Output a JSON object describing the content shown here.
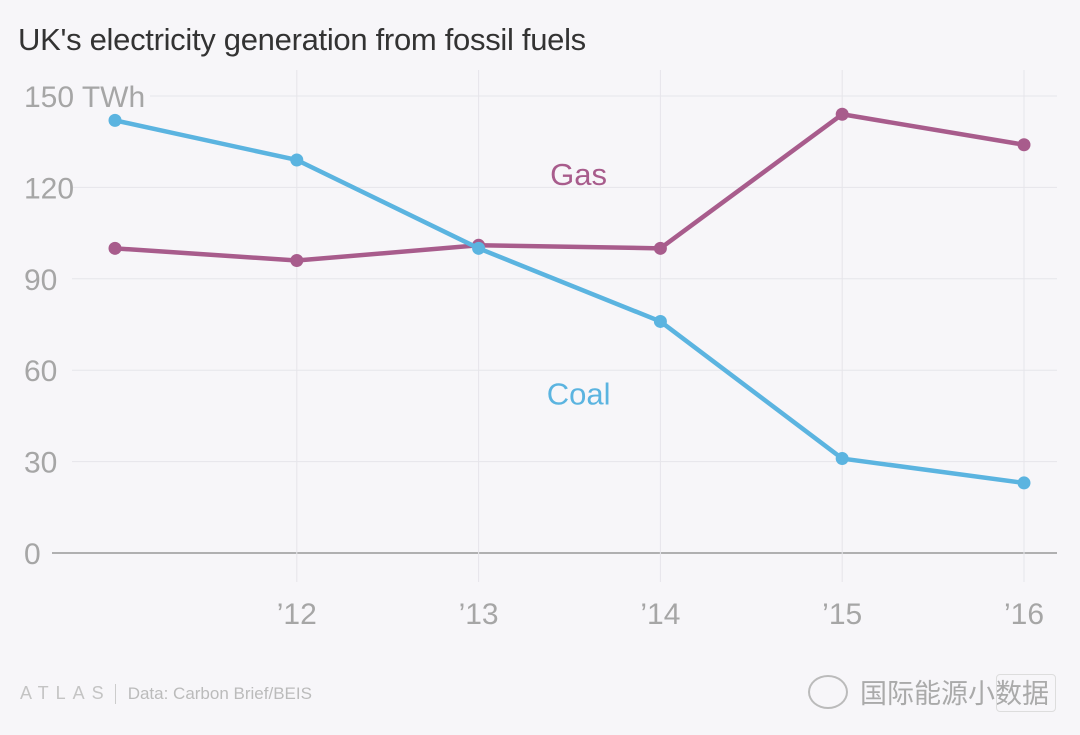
{
  "title": "UK's electricity generation from fossil fuels",
  "footer": {
    "brand": "ATLAS",
    "source": "Data:  Carbon Brief/BEIS"
  },
  "watermark": {
    "text": "国际能源小数据"
  },
  "chart_data": {
    "type": "line",
    "title": "UK's electricity generation from fossil fuels",
    "xlabel": "",
    "ylabel": "TWh",
    "x": [
      "2011",
      "2012",
      "2013",
      "2014",
      "2015",
      "2016"
    ],
    "x_tick_labels": [
      "",
      "'12",
      "'13",
      "'14",
      "'15",
      "'16"
    ],
    "y_ticks": [
      0,
      30,
      60,
      90,
      120,
      150
    ],
    "y_tick_labels": [
      "0",
      "30",
      "60",
      "90",
      "120",
      "150 TWh"
    ],
    "ylim": [
      0,
      150
    ],
    "grid": true,
    "legend": "inline labels",
    "series": [
      {
        "name": "Coal",
        "color": "#5bb4e0",
        "values": [
          142,
          129,
          100,
          76,
          31,
          23
        ]
      },
      {
        "name": "Gas",
        "color": "#a85c8c",
        "values": [
          100,
          96,
          101,
          100,
          144,
          134
        ]
      }
    ],
    "annotations": [
      {
        "text": "Gas",
        "near": "2013.5",
        "value": 124
      },
      {
        "text": "Coal",
        "near": "2013.5",
        "value": 52
      }
    ]
  }
}
